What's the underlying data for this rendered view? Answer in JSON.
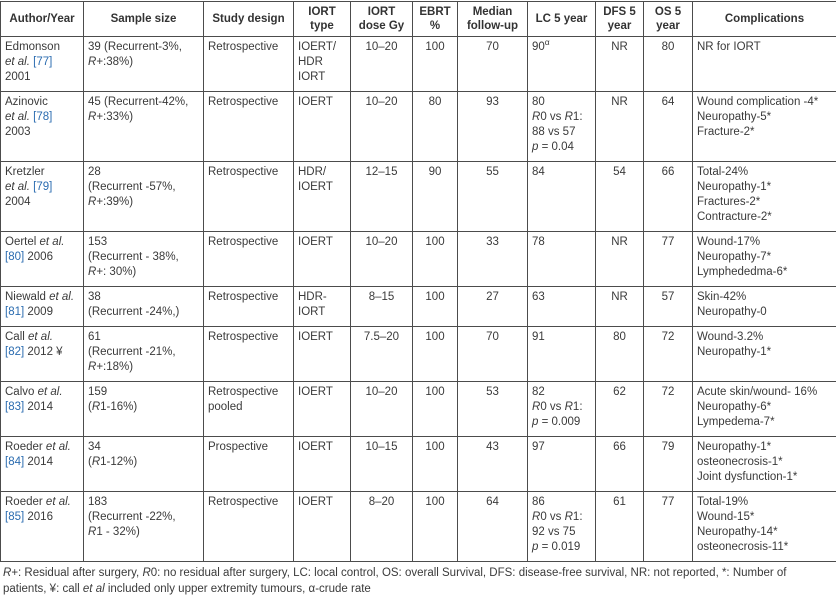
{
  "page": {
    "background": "#ffffff",
    "text_color": "#3a3a3a",
    "border_color": "#4c4c4c",
    "link_color": "#2b6cb0"
  },
  "table": {
    "columns": [
      {
        "key": "author",
        "label": "Author/Year"
      },
      {
        "key": "sample",
        "label": "Sample size"
      },
      {
        "key": "design",
        "label": "Study design"
      },
      {
        "key": "iort_type",
        "label": "IORT type"
      },
      {
        "key": "dose",
        "label": "IORT dose Gy"
      },
      {
        "key": "ebrt",
        "label": "EBRT %"
      },
      {
        "key": "followup",
        "label": "Median follow-up"
      },
      {
        "key": "lc5",
        "label": "LC 5 year"
      },
      {
        "key": "dfs5",
        "label": "DFS 5 year"
      },
      {
        "key": "os5",
        "label": "OS 5 year"
      },
      {
        "key": "complications",
        "label": "Complications"
      }
    ],
    "rows": [
      {
        "author": [
          "Edmonson",
          "et al. [77]",
          "2001"
        ],
        "sample": [
          "39 (Recurrent-3%,",
          "R+:38%)"
        ],
        "design": [
          "Retrospective"
        ],
        "iort_type": [
          "IOERT/",
          "HDR",
          "IORT"
        ],
        "dose": [
          "10–20"
        ],
        "ebrt": [
          "100"
        ],
        "followup": [
          "70"
        ],
        "lc5": [
          "90ᵅ"
        ],
        "dfs5": [
          "NR"
        ],
        "os5": [
          "80"
        ],
        "complications": [
          "NR for IORT"
        ]
      },
      {
        "author": [
          "Azinovic",
          "et al. [78]",
          "2003"
        ],
        "sample": [
          "45 (Recurrent-42%,",
          "R+:33%)"
        ],
        "design": [
          "Retrospective"
        ],
        "iort_type": [
          "IOERT"
        ],
        "dose": [
          "10–20"
        ],
        "ebrt": [
          "80"
        ],
        "followup": [
          "93"
        ],
        "lc5": [
          "80",
          "R0 vs R1:",
          "88 vs 57",
          "p = 0.04"
        ],
        "dfs5": [
          "NR"
        ],
        "os5": [
          "64"
        ],
        "complications": [
          "Wound complication -4*",
          "Neuropathy-5*",
          "Fracture-2*"
        ]
      },
      {
        "author": [
          "Kretzler",
          "et al. [79]",
          "2004"
        ],
        "sample": [
          "28",
          "(Recurrent -57%,",
          "R+:39%)"
        ],
        "design": [
          "Retrospective"
        ],
        "iort_type": [
          "HDR/",
          "IOERT"
        ],
        "dose": [
          "12–15"
        ],
        "ebrt": [
          "90"
        ],
        "followup": [
          "55"
        ],
        "lc5": [
          "84"
        ],
        "dfs5": [
          "54"
        ],
        "os5": [
          "66"
        ],
        "complications": [
          "Total-24%",
          "Neuropathy-1*",
          "Fractures-2*",
          "Contracture-2*"
        ]
      },
      {
        "author": [
          "Oertel et al.",
          "[80] 2006"
        ],
        "sample": [
          "153",
          "(Recurrent - 38%,",
          "R+: 30%)"
        ],
        "design": [
          "Retrospective"
        ],
        "iort_type": [
          "IOERT"
        ],
        "dose": [
          "10–20"
        ],
        "ebrt": [
          "100"
        ],
        "followup": [
          "33"
        ],
        "lc5": [
          "78"
        ],
        "dfs5": [
          "NR"
        ],
        "os5": [
          "77"
        ],
        "complications": [
          "Wound-17%",
          "Neuropathy-7*",
          "Lymphededma-6*"
        ]
      },
      {
        "author": [
          "Niewald et al.",
          "[81] 2009"
        ],
        "sample": [
          "38",
          "(Recurrent -24%,)"
        ],
        "design": [
          "Retrospective"
        ],
        "iort_type": [
          "HDR-",
          "IORT"
        ],
        "dose": [
          "8–15"
        ],
        "ebrt": [
          "100"
        ],
        "followup": [
          "27"
        ],
        "lc5": [
          "63"
        ],
        "dfs5": [
          "NR"
        ],
        "os5": [
          "57"
        ],
        "complications": [
          "Skin-42%",
          "Neuropathy-0"
        ]
      },
      {
        "author": [
          "Call et al.",
          "[82] 2012 ¥"
        ],
        "sample": [
          "61",
          "(Recurrent -21%,",
          "R+:18%)"
        ],
        "design": [
          "Retrospective"
        ],
        "iort_type": [
          "IOERT"
        ],
        "dose": [
          "7.5–20"
        ],
        "ebrt": [
          "100"
        ],
        "followup": [
          "70"
        ],
        "lc5": [
          "91"
        ],
        "dfs5": [
          "80"
        ],
        "os5": [
          "72"
        ],
        "complications": [
          "Wound-3.2%",
          "Neuropathy-1*"
        ]
      },
      {
        "author": [
          "Calvo et al.",
          "[83] 2014"
        ],
        "sample": [
          "159",
          "(R1-16%)"
        ],
        "design": [
          "Retrospective",
          "pooled"
        ],
        "iort_type": [
          "IOERT"
        ],
        "dose": [
          "10–20"
        ],
        "ebrt": [
          "100"
        ],
        "followup": [
          "53"
        ],
        "lc5": [
          "82",
          "R0 vs R1:",
          "p = 0.009"
        ],
        "dfs5": [
          "62"
        ],
        "os5": [
          "72"
        ],
        "complications": [
          "Acute skin/wound- 16%",
          "Neuropathy-6*",
          "Lympedema-7*"
        ]
      },
      {
        "author": [
          "Roeder et al.",
          "[84] 2014"
        ],
        "sample": [
          "34",
          "(R1-12%)"
        ],
        "design": [
          "Prospective"
        ],
        "iort_type": [
          "IOERT"
        ],
        "dose": [
          "10–15"
        ],
        "ebrt": [
          "100"
        ],
        "followup": [
          "43"
        ],
        "lc5": [
          "97"
        ],
        "dfs5": [
          "66"
        ],
        "os5": [
          "79"
        ],
        "complications": [
          "Neuropathy-1*",
          "osteonecrosis-1*",
          "Joint dysfunction-1*"
        ]
      },
      {
        "author": [
          "Roeder et al.",
          "[85] 2016"
        ],
        "sample": [
          "183",
          "(Recurrent -22%,",
          "R1 - 32%)"
        ],
        "design": [
          "Retrospective"
        ],
        "iort_type": [
          "IOERT"
        ],
        "dose": [
          "8–20"
        ],
        "ebrt": [
          "100"
        ],
        "followup": [
          "64"
        ],
        "lc5": [
          "86",
          "R0 vs R1:",
          "92 vs 75",
          "p = 0.019"
        ],
        "dfs5": [
          "61"
        ],
        "os5": [
          "77"
        ],
        "complications": [
          "Total-19%",
          "Wound-15*",
          "Neuropathy-14*",
          "osteonecrosis-11*"
        ]
      }
    ]
  },
  "footnote": "R+: Residual after surgery, R0: no residual after surgery, LC: local control, OS: overall Survival, DFS: disease-free survival, NR: not reported, *: Number of patients, ¥: call et al included only upper extremity tumours, α-crude rate"
}
